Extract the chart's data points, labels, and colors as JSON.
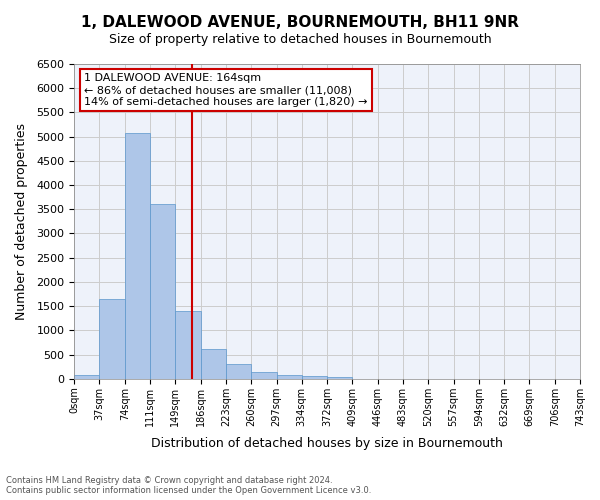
{
  "title": "1, DALEWOOD AVENUE, BOURNEMOUTH, BH11 9NR",
  "subtitle": "Size of property relative to detached houses in Bournemouth",
  "xlabel": "Distribution of detached houses by size in Bournemouth",
  "ylabel": "Number of detached properties",
  "footer_line1": "Contains HM Land Registry data © Crown copyright and database right 2024.",
  "footer_line2": "Contains public sector information licensed under the Open Government Licence v3.0.",
  "bar_values": [
    75,
    1650,
    5080,
    3600,
    1400,
    620,
    300,
    140,
    80,
    55,
    40,
    0,
    0,
    0,
    0,
    0,
    0,
    0,
    0,
    0
  ],
  "bar_labels": [
    "0sqm",
    "37sqm",
    "74sqm",
    "111sqm",
    "149sqm",
    "186sqm",
    "223sqm",
    "260sqm",
    "297sqm",
    "334sqm",
    "372sqm",
    "409sqm",
    "446sqm",
    "483sqm",
    "520sqm",
    "557sqm",
    "594sqm",
    "632sqm",
    "669sqm",
    "706sqm",
    "743sqm"
  ],
  "bar_color": "#aec6e8",
  "bar_edge_color": "#5a96cc",
  "vline_x": 4.64,
  "vline_color": "#cc0000",
  "annotation_title": "1 DALEWOOD AVENUE: 164sqm",
  "annotation_line1": "← 86% of detached houses are smaller (11,008)",
  "annotation_line2": "14% of semi-detached houses are larger (1,820) →",
  "annotation_box_color": "#ffffff",
  "annotation_border_color": "#cc0000",
  "ylim": [
    0,
    6500
  ],
  "yticks": [
    0,
    500,
    1000,
    1500,
    2000,
    2500,
    3000,
    3500,
    4000,
    4500,
    5000,
    5500,
    6000,
    6500
  ],
  "grid_color": "#cccccc",
  "bg_color": "#eef2fa"
}
